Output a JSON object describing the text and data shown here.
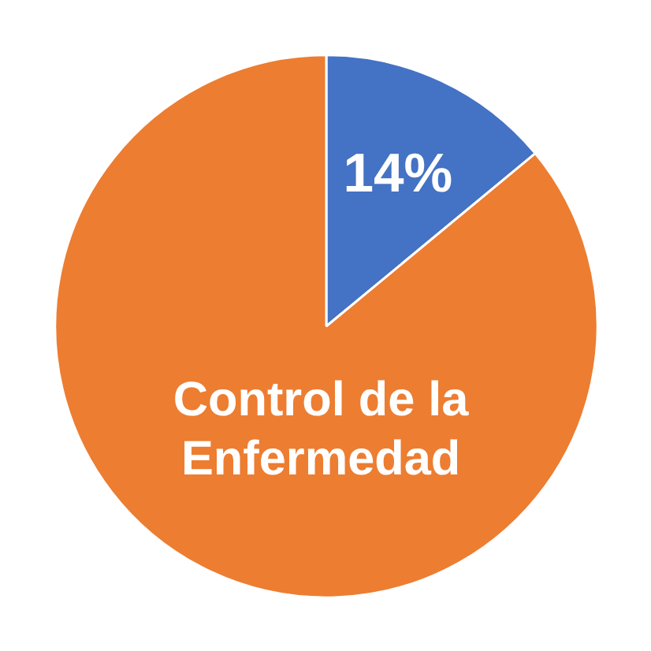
{
  "chart_data": {
    "type": "pie",
    "categories": [
      null,
      "Control de la Enfermedad"
    ],
    "values": [
      14,
      86
    ],
    "colors": [
      "#4472c4",
      "#ed7d31"
    ],
    "value_labels": [
      "14%",
      null
    ]
  }
}
